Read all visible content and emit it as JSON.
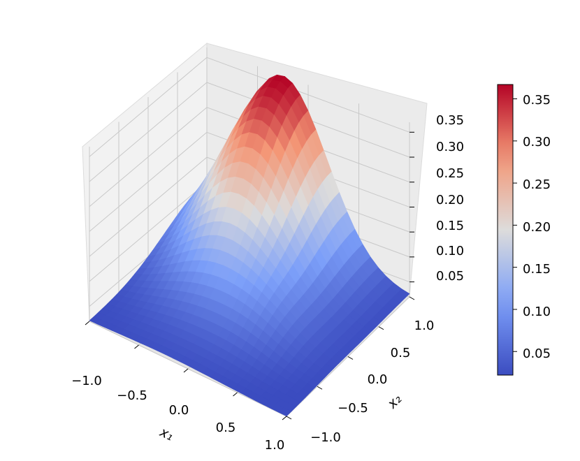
{
  "chart_data": {
    "type": "surface3d",
    "title": "",
    "xlabel": "x₁",
    "ylabel": "x₂",
    "zlabel": "",
    "xlim": [
      -1.0,
      1.0
    ],
    "ylim": [
      -1.0,
      1.0
    ],
    "zlim": [
      0.02,
      0.37
    ],
    "grid": true,
    "colormap": "coolwarm",
    "x_ticks": [
      "−1.0",
      "−0.5",
      "0.0",
      "0.5",
      "1.0"
    ],
    "y_ticks": [
      "−1.0",
      "−0.5",
      "0.0",
      "0.5",
      "1.0"
    ],
    "z_ticks": [
      "0.05",
      "0.10",
      "0.15",
      "0.20",
      "0.25",
      "0.30",
      "0.35"
    ],
    "colorbar": {
      "range": [
        0.022,
        0.367
      ],
      "ticks": [
        "0.05",
        "0.10",
        "0.15",
        "0.20",
        "0.25",
        "0.30",
        "0.35"
      ]
    },
    "surface": {
      "description_of_function": "bump peaking near x1=-0.25, x2=1.0",
      "x": [
        -1.0,
        -0.5,
        0.0,
        0.5,
        1.0
      ],
      "y": [
        -1.0,
        -0.5,
        0.0,
        0.5,
        1.0
      ],
      "z_approx": {
        "peak": 0.37,
        "corner_x-1_y-1": 0.03,
        "corner_x1_y-1": 0.02,
        "corner_x1_y1": 0.03,
        "corner_x-1_y1": 0.22,
        "center": 0.18
      }
    }
  }
}
